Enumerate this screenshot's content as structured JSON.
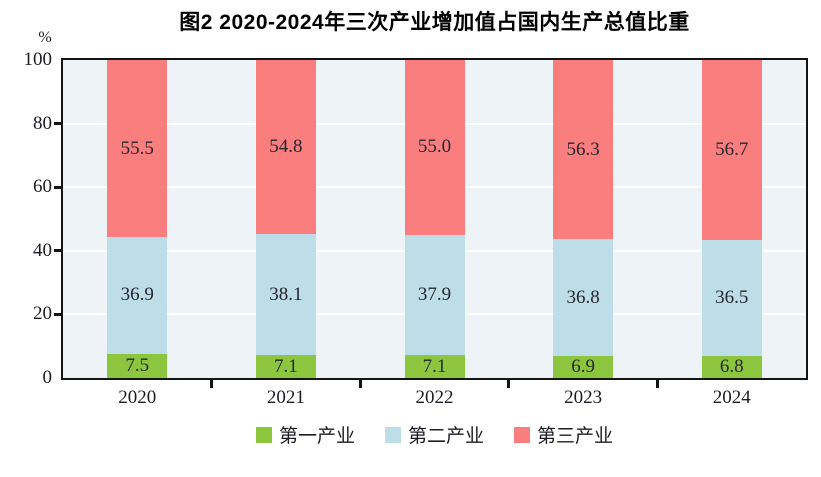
{
  "chart_data": {
    "type": "bar",
    "stacked": true,
    "title": "图2  2020-2024年三次产业增加值占国内生产总值比重",
    "ylabel": "%",
    "ylim": [
      0,
      100
    ],
    "yticks": [
      0,
      20,
      40,
      60,
      80,
      100
    ],
    "grid": true,
    "legend_position": "bottom",
    "categories": [
      "2020",
      "2021",
      "2022",
      "2023",
      "2024"
    ],
    "series": [
      {
        "name": "第一产业",
        "key": "primary-industry",
        "color": "#8CC63E",
        "values": [
          7.5,
          7.1,
          7.1,
          6.9,
          6.8
        ]
      },
      {
        "name": "第二产业",
        "key": "secondary-industry",
        "color": "#BDDDE8",
        "values": [
          36.9,
          38.1,
          37.9,
          36.8,
          36.5
        ]
      },
      {
        "name": "第三产业",
        "key": "tertiary-industry",
        "color": "#FA7E7E",
        "values": [
          55.5,
          54.8,
          55.0,
          56.3,
          56.7
        ]
      }
    ],
    "value_label_decimals": 1,
    "colors": {
      "plot_background": "#EDF3F7",
      "gridline": "#FFFFFF",
      "axis": "#141414",
      "label_text": "#26262E"
    }
  }
}
